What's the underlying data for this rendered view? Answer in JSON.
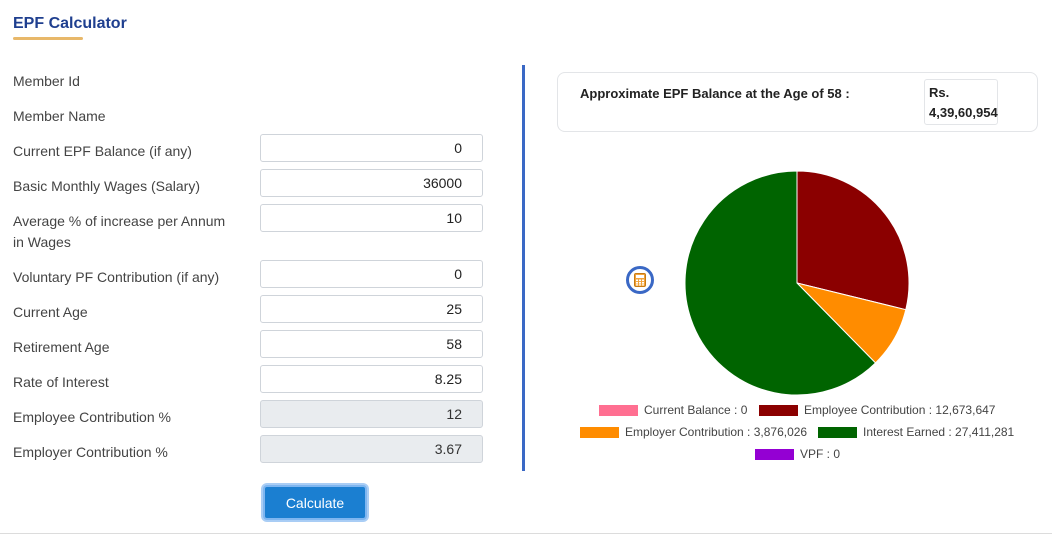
{
  "page": {
    "title": "EPF Calculator"
  },
  "form": {
    "fields": [
      {
        "label": "Member Id"
      },
      {
        "label": "Member Name"
      },
      {
        "label": "Current EPF Balance (if any)",
        "value": "0"
      },
      {
        "label": "Basic Monthly Wages (Salary)",
        "value": "36000"
      },
      {
        "label": "Average % of increase per Annum",
        "label_line2": "in Wages",
        "value": "10"
      },
      {
        "label": "Voluntary PF Contribution (if any)",
        "value": "0"
      },
      {
        "label": "Current Age",
        "value": "25"
      },
      {
        "label": "Retirement Age",
        "value": "58"
      },
      {
        "label": "Rate of Interest",
        "value": "8.25"
      },
      {
        "label": "Employee Contribution %",
        "value": "12"
      },
      {
        "label": "Employer Contribution %",
        "value": "3.67"
      }
    ],
    "calculate_label": "Calculate"
  },
  "result": {
    "label": "Approximate EPF Balance at the Age of 58 :",
    "currency": "Rs.",
    "amount": "4,39,60,954"
  },
  "icons": {
    "calculator": "calculator-icon"
  },
  "chart_data": {
    "type": "pie",
    "slices": [
      {
        "name": "Current Balance",
        "value": 0,
        "label": "Current Balance : 0",
        "color": "#ff6f91"
      },
      {
        "name": "Employee Contribution",
        "value": 12673647,
        "label": "Employee Contribution : 12,673,647",
        "color": "#8b0000"
      },
      {
        "name": "Employer Contribution",
        "value": 3876026,
        "label": "Employer Contribution : 3,876,026",
        "color": "#ff8c00"
      },
      {
        "name": "Interest Earned",
        "value": 27411281,
        "label": "Interest Earned : 27,411,281",
        "color": "#006400"
      },
      {
        "name": "VPF",
        "value": 0,
        "label": "VPF : 0",
        "color": "#9400d3"
      }
    ],
    "start_angle": "12 o'clock",
    "direction": "clockwise",
    "legend_position": "bottom"
  }
}
